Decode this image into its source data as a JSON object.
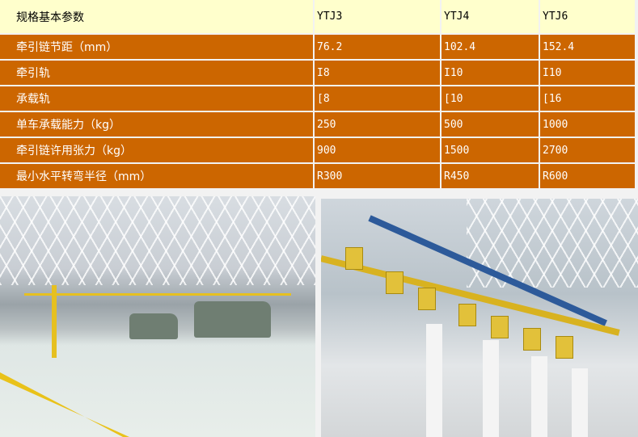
{
  "table": {
    "header": [
      "规格基本参数",
      "YTJ3",
      "YTJ4",
      "YTJ6"
    ],
    "rows": [
      [
        "牵引链节距（mm）",
        "76.2",
        "102.4",
        "152.4"
      ],
      [
        "牵引轨",
        "I8",
        "I10",
        "I10"
      ],
      [
        "承载轨",
        "[8",
        "[10",
        "[16"
      ],
      [
        "单车承载能力（kg）",
        "250",
        "500",
        "1000"
      ],
      [
        "牵引链许用张力（kg）",
        "900",
        "1500",
        "2700"
      ],
      [
        "最小水平转弯半径（mm）",
        "R300",
        "R450",
        "R600"
      ]
    ]
  },
  "colors": {
    "header_bg": "#ffffcc",
    "row_bg": "#cc6600",
    "row_text": "#ffffff"
  }
}
